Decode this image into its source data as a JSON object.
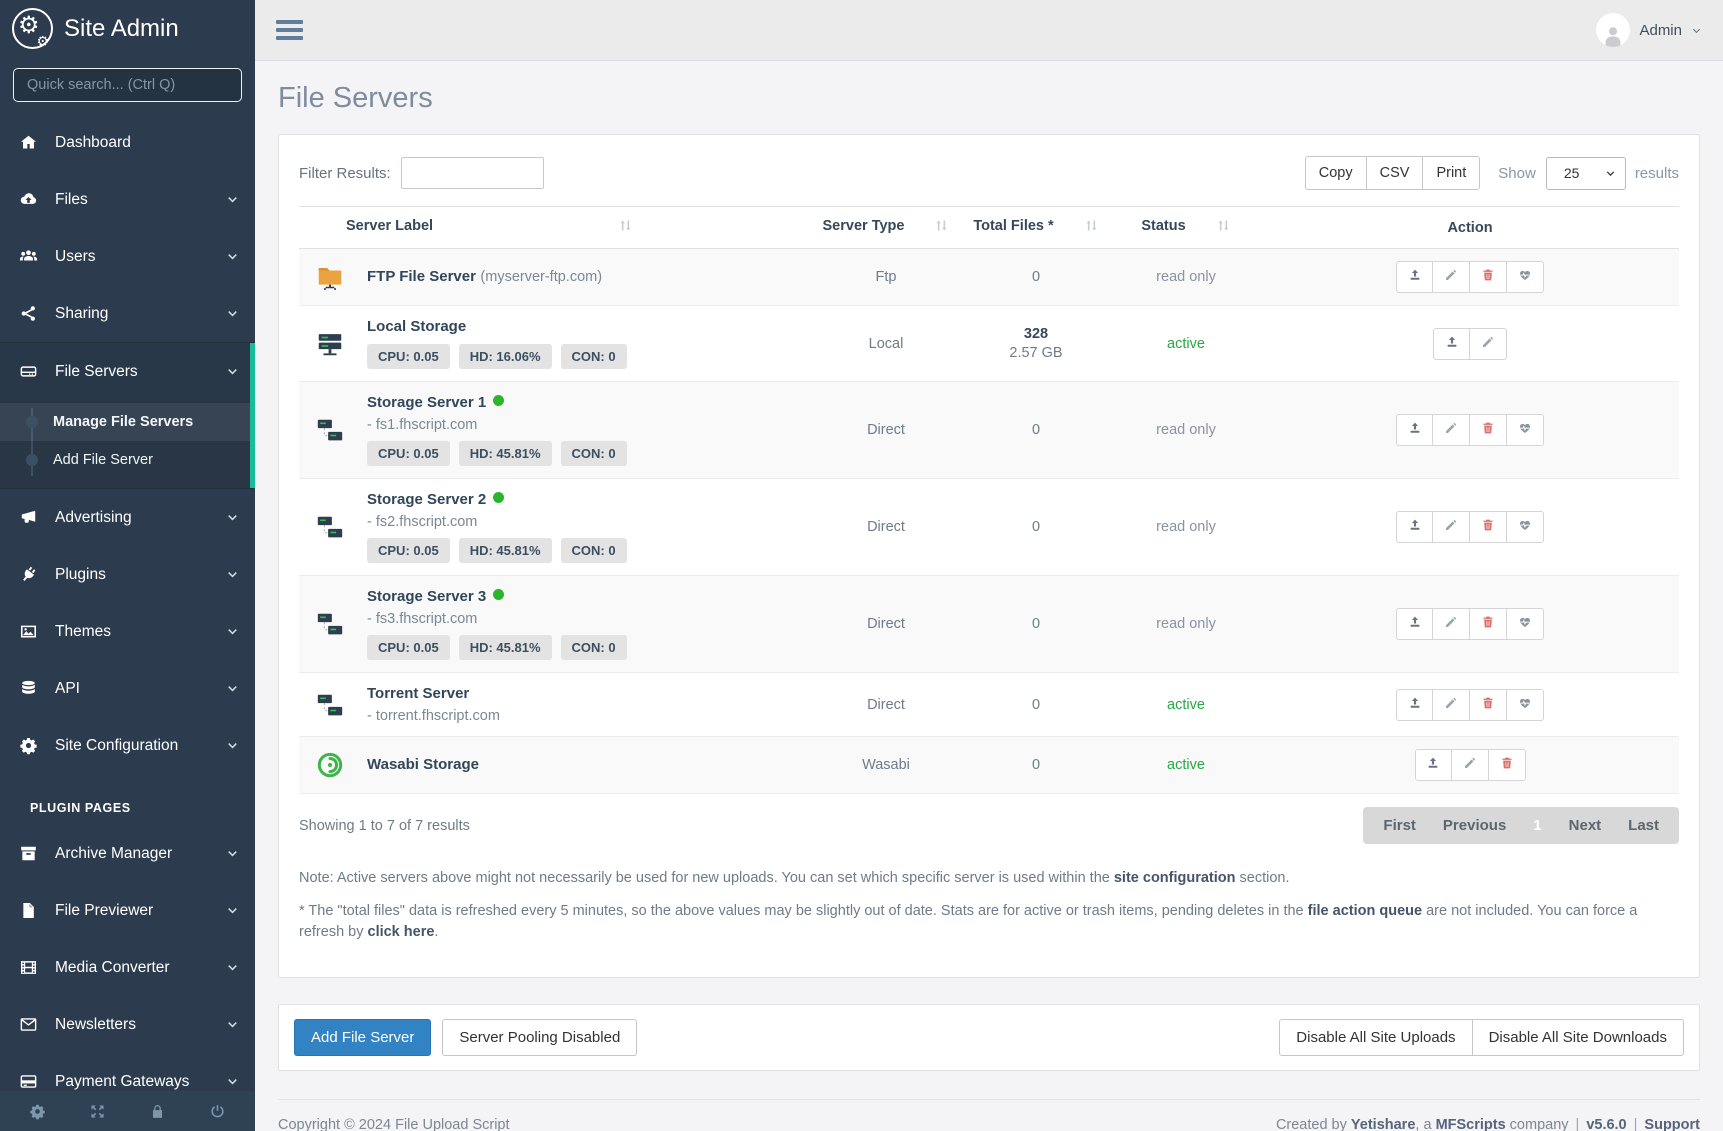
{
  "colors": {
    "sidebar_bg": "#2c3b4d",
    "accent_green": "#18bc9c",
    "status_active": "#28a745",
    "online_dot": "#2bb52b",
    "danger": "#d9706c",
    "primary_btn": "#3183c3"
  },
  "sidebar": {
    "brand": "Site Admin",
    "search_placeholder": "Quick search... (Ctrl Q)",
    "items": [
      {
        "label": "Dashboard",
        "icon": "home",
        "chevron": false
      },
      {
        "label": "Files",
        "icon": "cloud-upload",
        "chevron": true
      },
      {
        "label": "Users",
        "icon": "users",
        "chevron": true
      },
      {
        "label": "Sharing",
        "icon": "share",
        "chevron": true
      },
      {
        "label": "File Servers",
        "icon": "hdd",
        "chevron": true,
        "expanded": true,
        "children": [
          {
            "label": "Manage File Servers",
            "active": true
          },
          {
            "label": "Add File Server",
            "active": false
          }
        ]
      },
      {
        "label": "Advertising",
        "icon": "megaphone",
        "chevron": true
      },
      {
        "label": "Plugins",
        "icon": "plug",
        "chevron": true
      },
      {
        "label": "Themes",
        "icon": "image",
        "chevron": true
      },
      {
        "label": "API",
        "icon": "database",
        "chevron": true
      },
      {
        "label": "Site Configuration",
        "icon": "gear",
        "chevron": true
      }
    ],
    "section_label": "PLUGIN PAGES",
    "plugin_items": [
      {
        "label": "Archive Manager",
        "icon": "archive",
        "chevron": true
      },
      {
        "label": "File Previewer",
        "icon": "file",
        "chevron": true
      },
      {
        "label": "Media Converter",
        "icon": "film",
        "chevron": true
      },
      {
        "label": "Newsletters",
        "icon": "envelope",
        "chevron": true
      },
      {
        "label": "Payment Gateways",
        "icon": "credit-card",
        "chevron": true
      }
    ],
    "footer_icons": [
      "gear",
      "expand",
      "lock",
      "power"
    ]
  },
  "topbar": {
    "user": "Admin"
  },
  "page": {
    "title": "File Servers"
  },
  "toolbar": {
    "filter_label": "Filter Results:",
    "filter_value": "",
    "export_buttons": [
      "Copy",
      "CSV",
      "Print"
    ],
    "show_label": "Show",
    "show_value": "25",
    "results_label": "results"
  },
  "table": {
    "columns": [
      "Server Label",
      "Server Type",
      "Total Files *",
      "Status",
      "Action"
    ],
    "rows": [
      {
        "icon": "ftp-folder",
        "label": "FTP File Server",
        "label_suffix": "(myserver-ftp.com)",
        "type": "Ftp",
        "files": "0",
        "status": "read only",
        "status_type": "readonly",
        "actions": [
          "upload",
          "edit",
          "delete",
          "health"
        ]
      },
      {
        "icon": "local-server",
        "label": "Local Storage",
        "badges": [
          "CPU: 0.05",
          "HD: 16.06%",
          "CON: 0"
        ],
        "type": "Local",
        "files": "328",
        "files_sub": "2.57 GB",
        "status": "active",
        "status_type": "active",
        "actions": [
          "upload",
          "edit"
        ]
      },
      {
        "icon": "network-server",
        "label": "Storage Server 1",
        "online_dot": true,
        "domain": "- fs1.fhscript.com",
        "badges": [
          "CPU: 0.05",
          "HD: 45.81%",
          "CON: 0"
        ],
        "type": "Direct",
        "files": "0",
        "status": "read only",
        "status_type": "readonly",
        "actions": [
          "upload",
          "edit",
          "delete",
          "health"
        ]
      },
      {
        "icon": "network-server",
        "label": "Storage Server 2",
        "online_dot": true,
        "domain": "- fs2.fhscript.com",
        "badges": [
          "CPU: 0.05",
          "HD: 45.81%",
          "CON: 0"
        ],
        "type": "Direct",
        "files": "0",
        "status": "read only",
        "status_type": "readonly",
        "actions": [
          "upload",
          "edit",
          "delete",
          "health"
        ]
      },
      {
        "icon": "network-server",
        "label": "Storage Server 3",
        "online_dot": true,
        "domain": "- fs3.fhscript.com",
        "badges": [
          "CPU: 0.05",
          "HD: 45.81%",
          "CON: 0"
        ],
        "type": "Direct",
        "files": "0",
        "status": "read only",
        "status_type": "readonly",
        "actions": [
          "upload",
          "edit",
          "delete",
          "health"
        ]
      },
      {
        "icon": "network-server",
        "label": "Torrent Server",
        "domain": "- torrent.fhscript.com",
        "type": "Direct",
        "files": "0",
        "status": "active",
        "status_type": "active",
        "actions": [
          "upload",
          "edit",
          "delete",
          "health"
        ]
      },
      {
        "icon": "wasabi",
        "label": "Wasabi Storage",
        "type": "Wasabi",
        "files": "0",
        "status": "active",
        "status_type": "active",
        "actions": [
          "upload",
          "edit",
          "delete"
        ]
      }
    ]
  },
  "pagination": {
    "summary": "Showing 1 to 7 of 7 results",
    "buttons": [
      "First",
      "Previous",
      "1",
      "Next",
      "Last"
    ],
    "active": "1"
  },
  "notes": {
    "note1_prefix": "Note: Active servers above might not necessarily be used for new uploads. You can set which specific server is used within the ",
    "note1_link": "site configuration",
    "note1_suffix": " section.",
    "note2_prefix": "* The \"total files\" data is refreshed every 5 minutes, so the above values may be slightly out of date. Stats are for active or trash items, pending deletes in the ",
    "note2_link1": "file action queue",
    "note2_mid": " are not included. You can force a refresh by ",
    "note2_link2": "click here",
    "note2_suffix": "."
  },
  "actions_bar": {
    "add_button": "Add File Server",
    "pooling_button": "Server Pooling Disabled",
    "disable_uploads": "Disable All Site Uploads",
    "disable_downloads": "Disable All Site Downloads"
  },
  "footer": {
    "copyright": "Copyright © 2024 File Upload Script",
    "created_prefix": "Created by ",
    "created_link1": "Yetishare",
    "created_mid": ", a ",
    "created_link2": "MFScripts",
    "created_suffix": " company",
    "sep": "|",
    "version": "v5.6.0",
    "support": "Support"
  }
}
